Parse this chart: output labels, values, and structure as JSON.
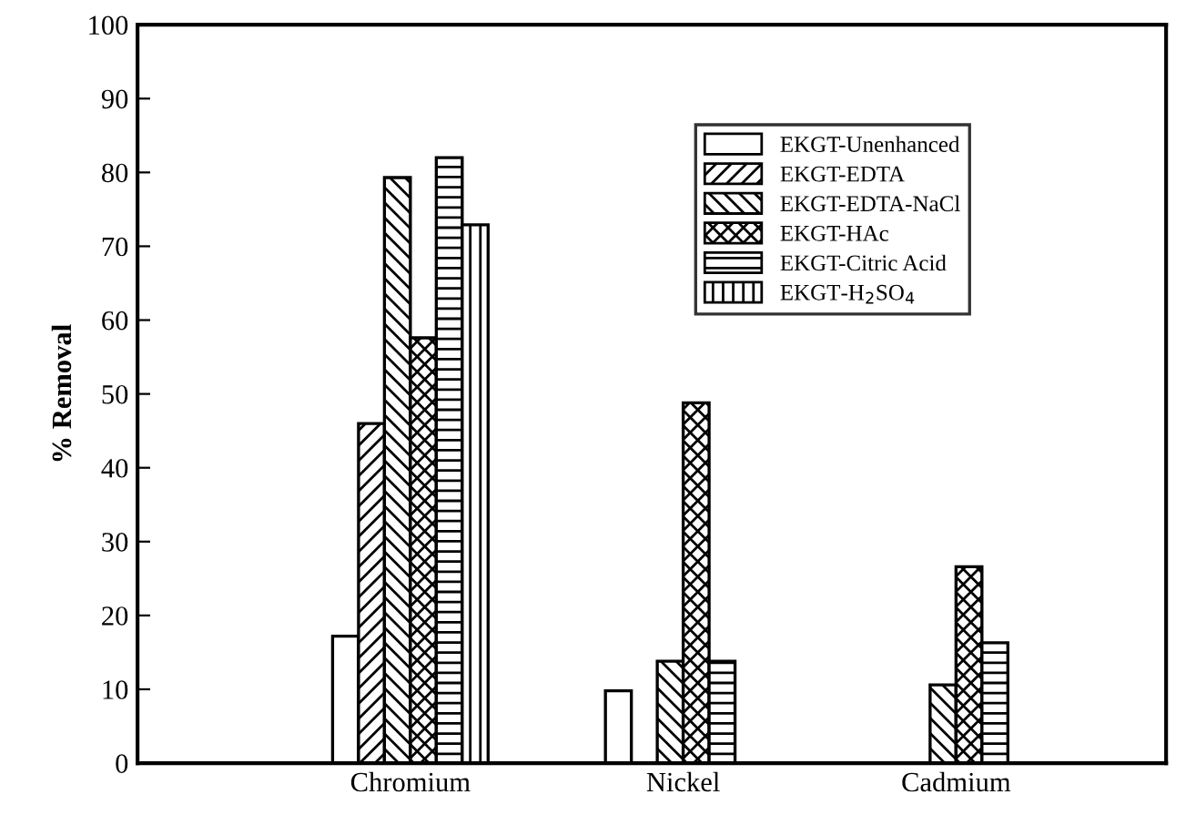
{
  "chart_data": {
    "type": "bar",
    "ylabel": "% Removal",
    "categories": [
      "Chromium",
      "Nickel",
      "Cadmium"
    ],
    "series": [
      {
        "name": "EKGT-Unenhanced",
        "color": "#ffffff",
        "values": [
          17.2,
          9.8,
          null
        ]
      },
      {
        "name": "EKGT-EDTA",
        "color": "#000000",
        "values": [
          46,
          null,
          null
        ]
      },
      {
        "name": "EKGT-EDTA-NaCl",
        "color": "#000000",
        "values": [
          79.3,
          13.8,
          10.6
        ]
      },
      {
        "name": "EKGT-HAc",
        "color": "#000000",
        "values": [
          57.6,
          48.8,
          26.6
        ]
      },
      {
        "name": "EKGT-Citric Acid",
        "color": "#000000",
        "values": [
          82,
          13.8,
          16.3
        ]
      },
      {
        "name": "EKGT-H$_{2}$SO$_{4}$",
        "color": "#000000",
        "values": [
          72.9,
          null,
          null
        ]
      }
    ],
    "ylim": [
      0,
      100
    ],
    "yticks": [
      0,
      10,
      20,
      30,
      40,
      50,
      60,
      70,
      80,
      90,
      100
    ],
    "grid": false,
    "legend": "top right"
  }
}
